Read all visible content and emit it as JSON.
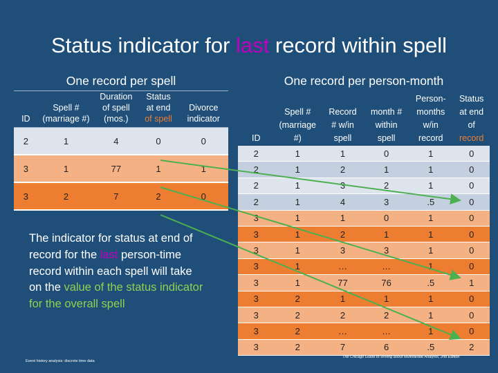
{
  "title": {
    "prefix": "Status indicator for ",
    "highlight": "last",
    "suffix": " record within spell"
  },
  "left_header": "One record per spell",
  "right_header": "One record per person-month",
  "left_table": {
    "columns": [
      "ID",
      "Spell # (marriage #)",
      "Duration of spell (mos.)",
      "Status at end of spell",
      "Divorce indicator"
    ],
    "col_ID": "ID",
    "col_spell": [
      "Spell #",
      "(marriage #)"
    ],
    "col_duration": [
      "Duration",
      "of spell",
      "(mos.)"
    ],
    "col_status": [
      "Status",
      "at end",
      "of spell"
    ],
    "col_divorce": [
      "Divorce",
      "indicator"
    ],
    "rows": [
      [
        "2",
        "1",
        "4",
        "0",
        "0"
      ],
      [
        "3",
        "1",
        "77",
        "1",
        "1"
      ],
      [
        "3",
        "2",
        "7",
        "2",
        "0"
      ]
    ]
  },
  "right_table": {
    "col_ID": "ID",
    "col_spell": [
      "Spell #",
      "(marriage",
      "#)"
    ],
    "col_record": [
      "Record",
      "# w/in",
      "spell"
    ],
    "col_month": [
      "month #",
      "within",
      "spell"
    ],
    "col_months": [
      "Person-",
      "months",
      "w/in",
      "record"
    ],
    "col_status": [
      "Status",
      "at end",
      "of",
      "record"
    ],
    "rows": [
      [
        "2",
        "1",
        "1",
        "0",
        "1",
        "0"
      ],
      [
        "2",
        "1",
        "2",
        "1",
        "1",
        "0"
      ],
      [
        "2",
        "1",
        "3",
        "2",
        "1",
        "0"
      ],
      [
        "2",
        "1",
        "4",
        "3",
        ".5",
        "0"
      ],
      [
        "3",
        "1",
        "1",
        "0",
        "1",
        "0"
      ],
      [
        "3",
        "1",
        "2",
        "1",
        "1",
        "0"
      ],
      [
        "3",
        "1",
        "3",
        "3",
        "1",
        "0"
      ],
      [
        "3",
        "1",
        "…",
        "…",
        "1",
        "0"
      ],
      [
        "3",
        "1",
        "77",
        "76",
        ".5",
        "1"
      ],
      [
        "3",
        "2",
        "1",
        "1",
        "1",
        "0"
      ],
      [
        "3",
        "2",
        "2",
        "2",
        "1",
        "0"
      ],
      [
        "3",
        "2",
        "…",
        "…",
        "1",
        "0"
      ],
      [
        "3",
        "2",
        "7",
        "6",
        ".5",
        "2"
      ]
    ]
  },
  "paragraph": {
    "p1": "The indicator for status at end of record for the ",
    "last": "last",
    "p2": " person-time record within each spell will take on the ",
    "val": "value of the status indicator for the overall spell"
  },
  "footer_left": "Event history analysis: discrete time data",
  "footer_right": "The Chicago Guide to Writing about Multivariate Analysis, 2nd Edition",
  "colors": {
    "background": "#1f4e79",
    "arrow": "#4caf50",
    "highlight_purple": "#c000c0",
    "orange": "#ed7d31"
  }
}
